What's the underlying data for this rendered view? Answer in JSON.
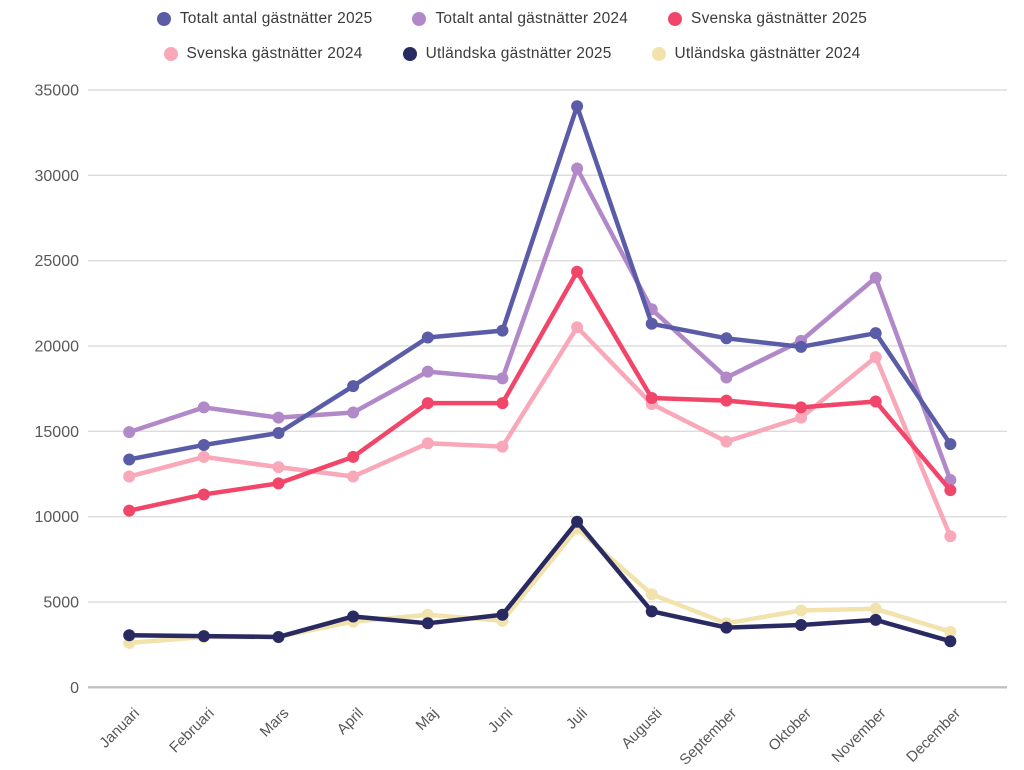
{
  "chart_data": {
    "type": "line",
    "title": "",
    "xlabel": "",
    "ylabel": "",
    "categories": [
      "Januari",
      "Februari",
      "Mars",
      "April",
      "Maj",
      "Juni",
      "Juli",
      "Augusti",
      "September",
      "Oktober",
      "November",
      "December"
    ],
    "series": [
      {
        "name": "Totalt antal gästnätter 2025",
        "color": "#5b5ca8",
        "values": [
          13350,
          14200,
          14900,
          17650,
          20500,
          20900,
          34050,
          21300,
          20450,
          19950,
          20750,
          14250
        ]
      },
      {
        "name": "Totalt antal gästnätter 2024",
        "color": "#b289c8",
        "values": [
          14950,
          16400,
          15800,
          16100,
          18500,
          18100,
          30400,
          22150,
          18150,
          20300,
          24000,
          12150
        ]
      },
      {
        "name": "Svenska gästnätter 2025",
        "color": "#f1466a",
        "values": [
          10350,
          11300,
          11950,
          13500,
          16650,
          16650,
          24350,
          16950,
          16800,
          16400,
          16750,
          11550
        ]
      },
      {
        "name": "Svenska gästnätter 2024",
        "color": "#f8a8b8",
        "values": [
          12350,
          13500,
          12900,
          12350,
          14300,
          14100,
          21100,
          16600,
          14400,
          15800,
          19350,
          8850
        ]
      },
      {
        "name": "Utländska gästnätter 2025",
        "color": "#2a2a62",
        "values": [
          3050,
          3000,
          2950,
          4150,
          3750,
          4250,
          9700,
          4450,
          3500,
          3650,
          3950,
          2700
        ]
      },
      {
        "name": "Utländska gästnätter 2024",
        "color": "#f2e2ab",
        "values": [
          2600,
          2950,
          2950,
          3850,
          4250,
          3900,
          9300,
          5450,
          3750,
          4500,
          4600,
          3250
        ]
      }
    ],
    "ylim": [
      0,
      35000
    ],
    "ytick_step": 5000,
    "ytick_labels": [
      "0",
      "5000",
      "10000",
      "15000",
      "20000",
      "25000",
      "30000",
      "35000"
    ],
    "grid": "horizontal",
    "legend_position": "top",
    "gridline_color": "#dcdcdc",
    "axis_line_color": "#c0c0c0",
    "axis_text_color": "#58585a",
    "background": "#ffffff"
  }
}
